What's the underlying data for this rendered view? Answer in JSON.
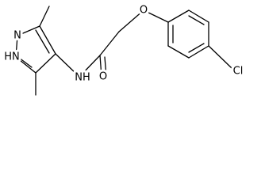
{
  "atoms": [
    {
      "label": "N"
    },
    {
      "label": "HN"
    },
    {
      "label": "NH"
    },
    {
      "label": "O"
    },
    {
      "label": "O"
    },
    {
      "label": "Cl"
    }
  ]
}
